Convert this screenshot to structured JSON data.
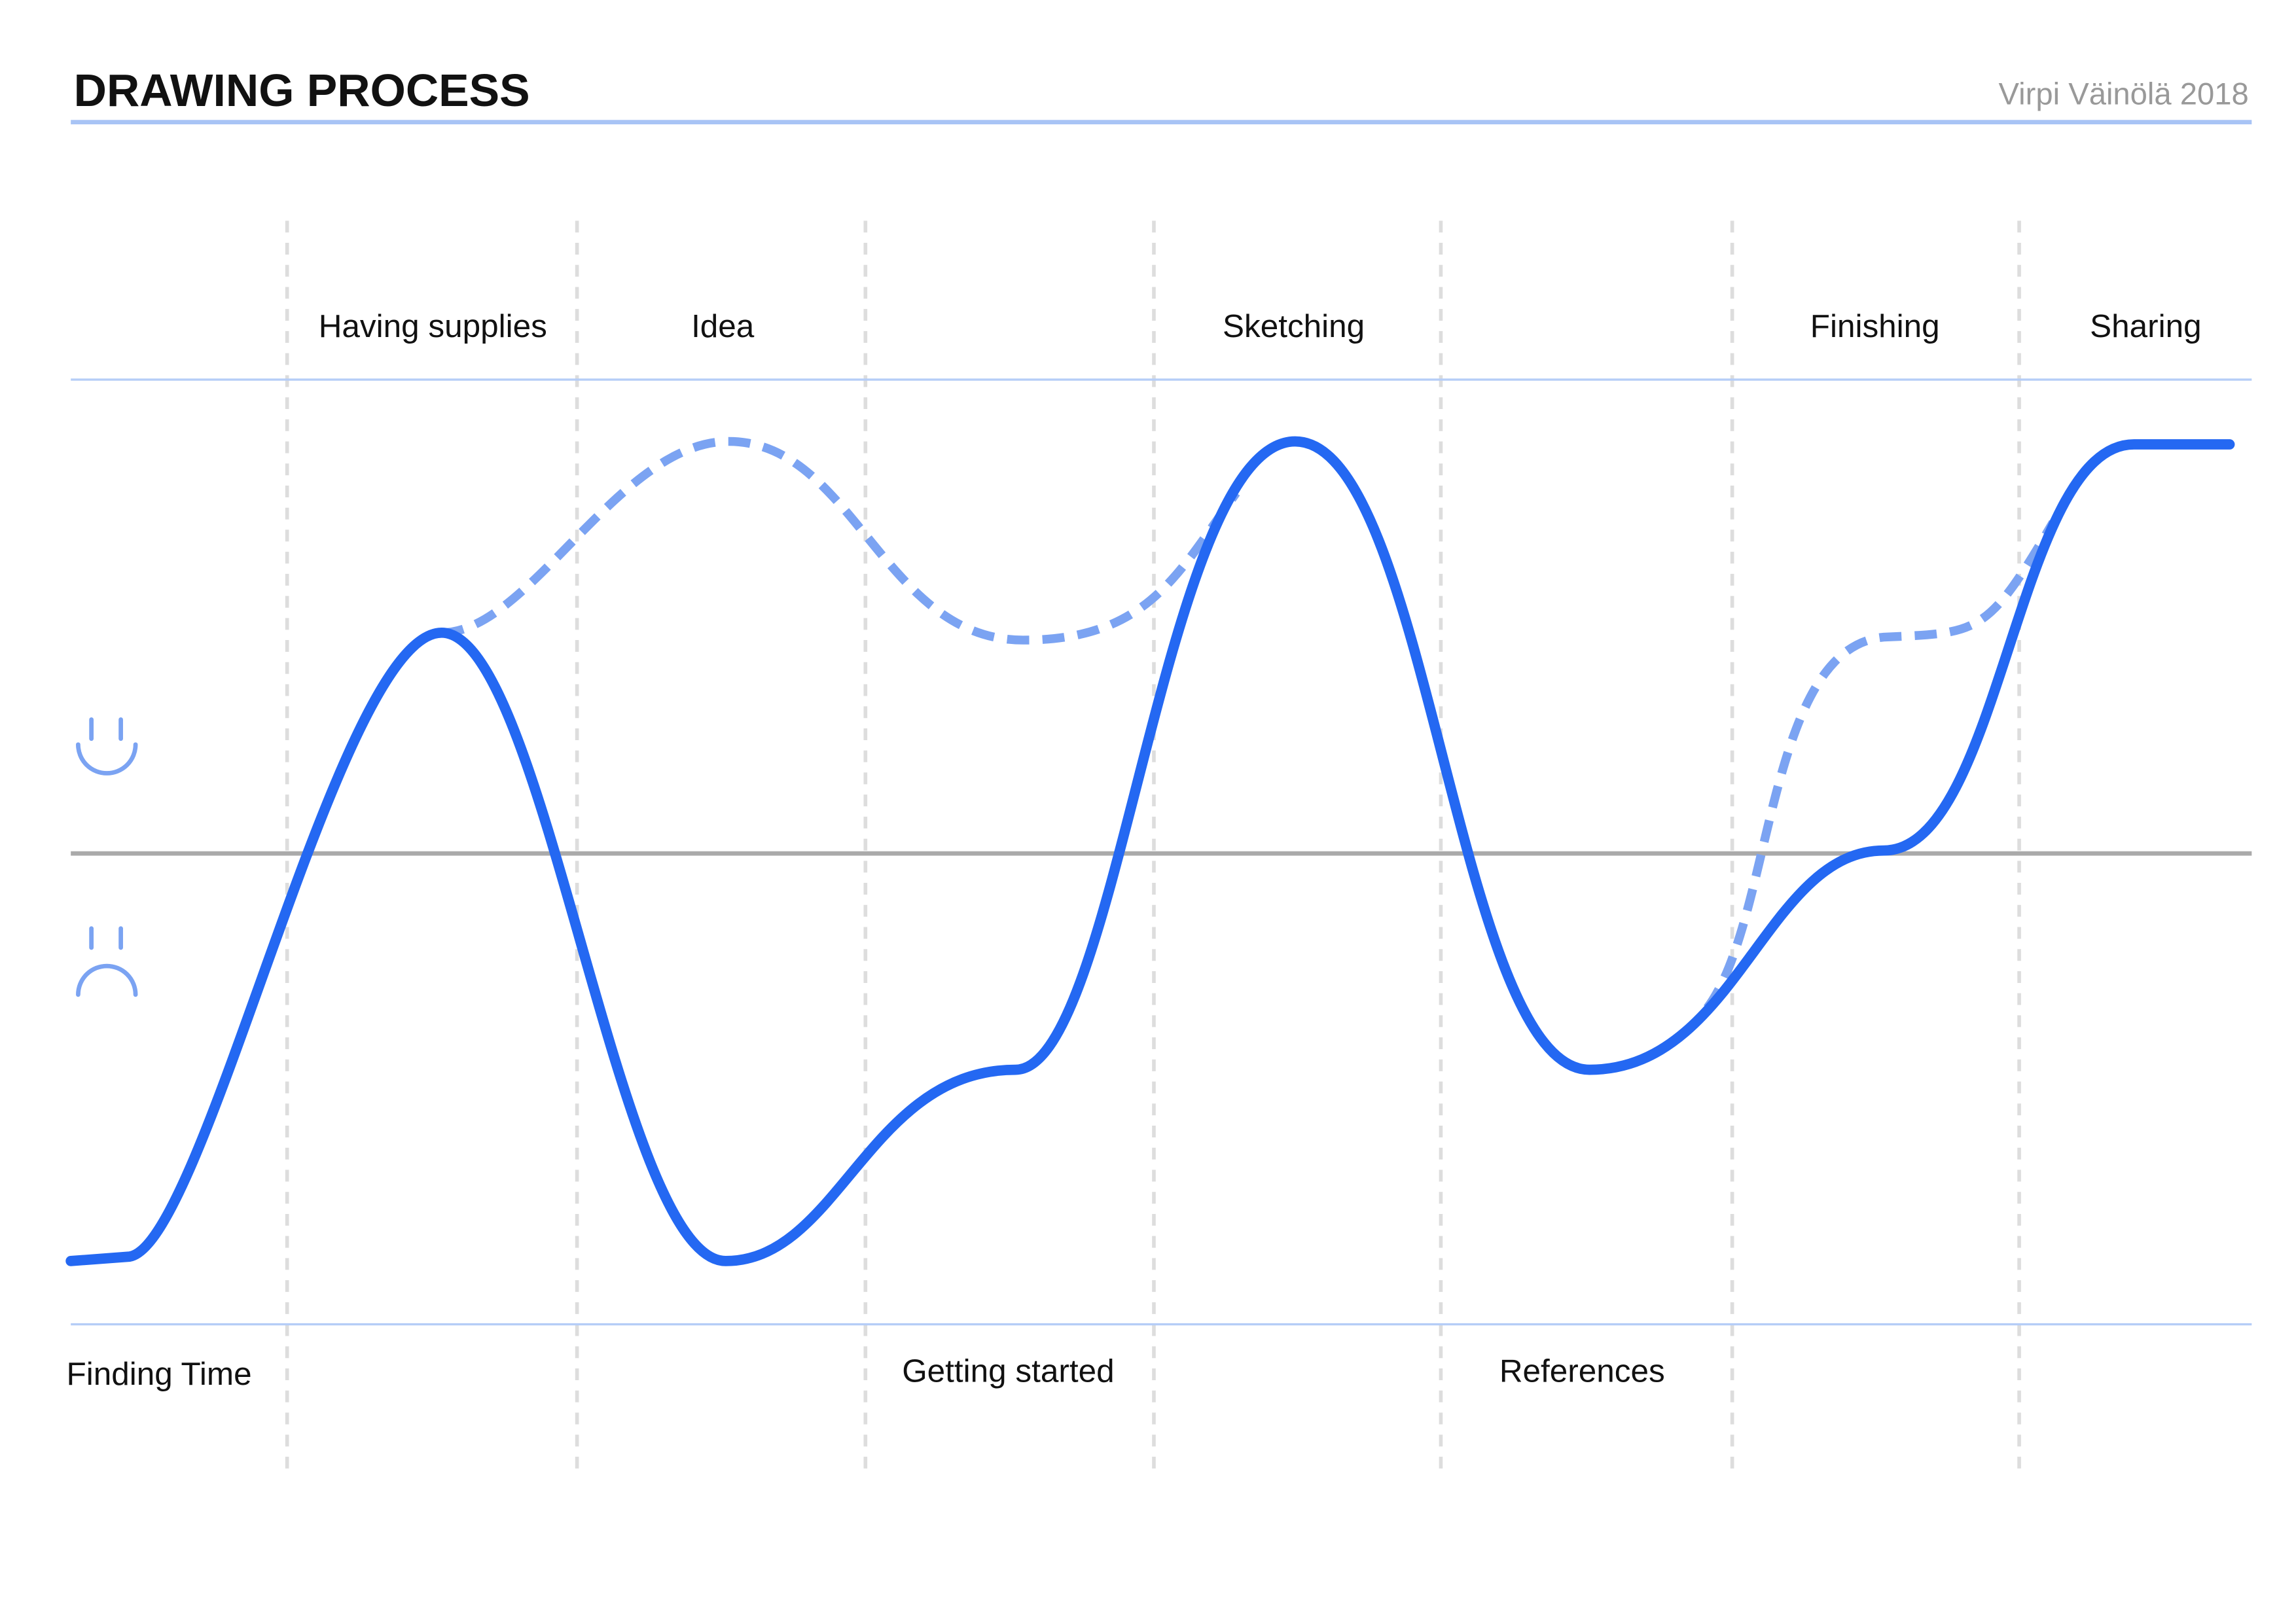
{
  "header": {
    "title": "DRAWING PROCESS",
    "credit": "Virpi Väinölä 2018"
  },
  "stages_top": [
    "Having supplies",
    "Idea",
    "Sketching",
    "Finishing",
    "Sharing"
  ],
  "stages_bottom": [
    "Finding Time",
    "Getting started",
    "References"
  ]
}
